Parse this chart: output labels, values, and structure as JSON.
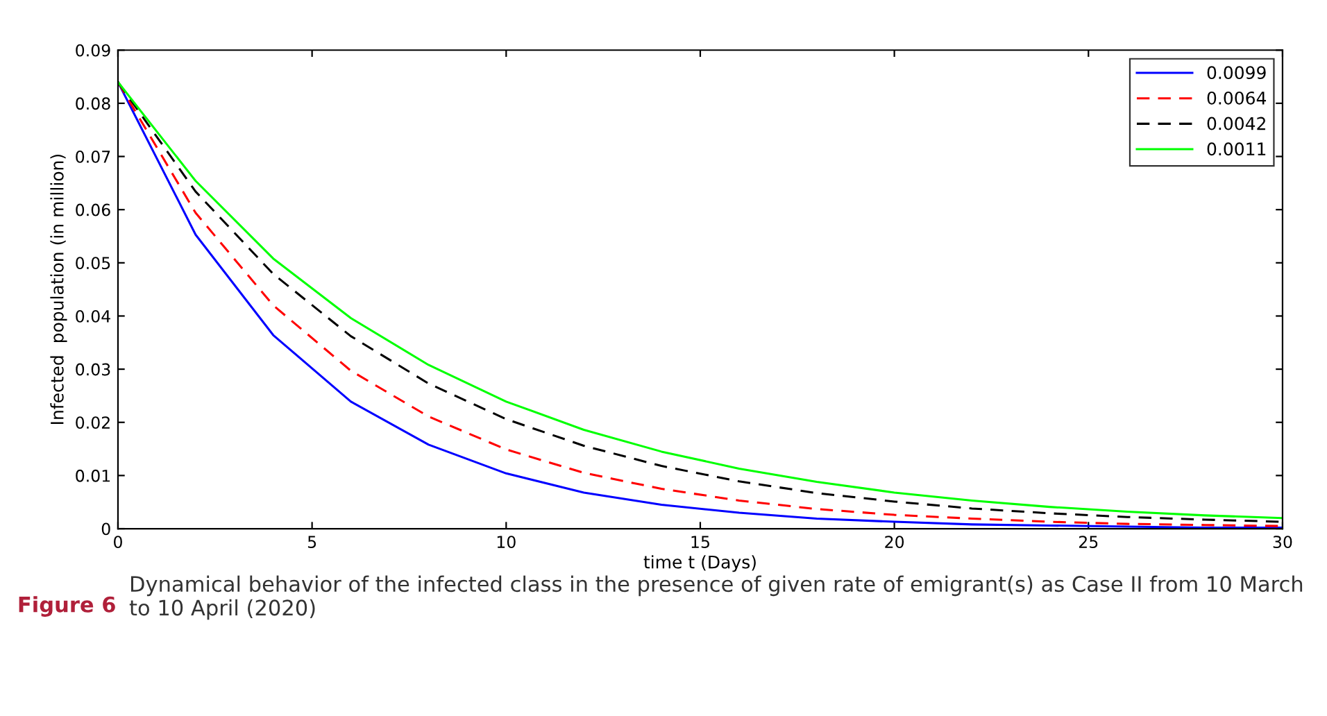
{
  "chart_data": {
    "type": "line",
    "xlabel": "time t (Days)",
    "ylabel": "Infected  population (in million)",
    "x": [
      0,
      2,
      4,
      6,
      8,
      10,
      12,
      14,
      16,
      18,
      20,
      22,
      24,
      26,
      28,
      30
    ],
    "series": [
      {
        "name": "0.0099",
        "color": "#0000ff",
        "line_style": "solid",
        "values": [
          0.084,
          0.0553,
          0.0364,
          0.0239,
          0.0158,
          0.0104,
          0.0068,
          0.0045,
          0.003,
          0.0019,
          0.0013,
          0.0008,
          0.0006,
          0.0004,
          0.0002,
          0.0002
        ]
      },
      {
        "name": "0.0064",
        "color": "#ff0000",
        "line_style": "dashed",
        "values": [
          0.084,
          0.0594,
          0.042,
          0.0297,
          0.0211,
          0.0149,
          0.0105,
          0.0075,
          0.0053,
          0.0037,
          0.0026,
          0.0019,
          0.0013,
          0.0009,
          0.0007,
          0.0005
        ]
      },
      {
        "name": "0.0042",
        "color": "#000000",
        "line_style": "dashed",
        "values": [
          0.084,
          0.0634,
          0.0479,
          0.0362,
          0.0273,
          0.0206,
          0.0156,
          0.0118,
          0.0089,
          0.0067,
          0.0051,
          0.0038,
          0.0029,
          0.0022,
          0.0017,
          0.0013
        ]
      },
      {
        "name": "0.0011",
        "color": "#00ff00",
        "line_style": "solid",
        "values": [
          0.084,
          0.0654,
          0.0508,
          0.0396,
          0.0308,
          0.0239,
          0.0186,
          0.0145,
          0.0113,
          0.0088,
          0.0068,
          0.0053,
          0.0041,
          0.0032,
          0.0025,
          0.002
        ]
      }
    ],
    "xlim": [
      0,
      30
    ],
    "xticks": [
      0,
      5,
      10,
      15,
      20,
      25,
      30
    ],
    "ylim": [
      0,
      0.09
    ],
    "yticks": [
      0,
      0.01,
      0.02,
      0.03,
      0.04,
      0.05,
      0.06,
      0.07,
      0.08,
      0.09
    ],
    "grid": false,
    "legend": "top right",
    "annotations": [
      "Figure 6",
      "Dynamical behavior of the infected class in the presence of given rate of emigrant(s) as Case II from 10 March to 10 April (2020)"
    ]
  }
}
